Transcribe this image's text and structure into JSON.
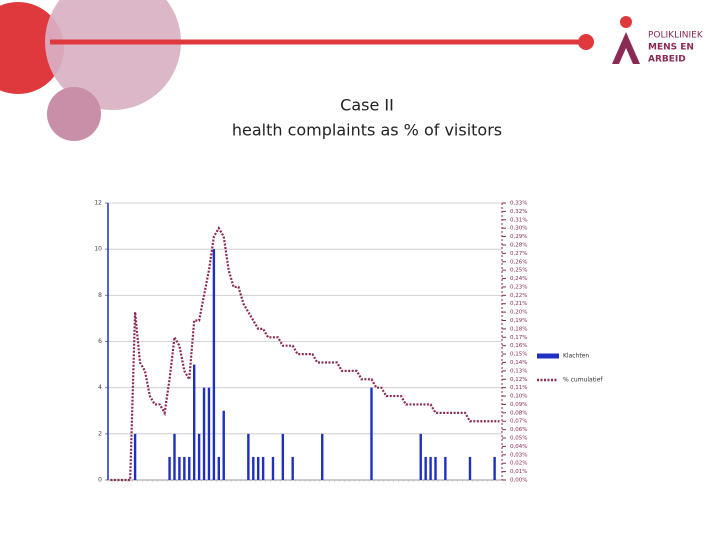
{
  "slide": {
    "title": "Case II",
    "subtitle": "health complaints as % of visitors",
    "logo": [
      "POLIKLINIEK",
      "MENS EN",
      "ARBEID"
    ]
  },
  "chart_data": {
    "type": "combo",
    "categories": [
      null,
      null,
      null,
      null,
      null,
      null,
      null,
      null,
      null,
      null,
      null,
      null,
      null,
      null,
      null,
      null,
      null,
      null,
      null,
      null,
      null,
      null,
      null,
      null,
      null,
      null,
      null,
      null,
      null,
      null,
      null,
      null,
      null,
      null,
      null,
      null,
      null,
      null,
      null,
      null,
      null,
      null,
      null,
      null,
      null,
      null,
      null,
      null,
      null,
      null,
      null,
      null,
      null,
      null,
      null,
      null,
      null,
      null,
      null,
      null,
      null,
      null,
      null,
      null,
      null,
      null,
      null,
      null,
      null,
      null,
      null,
      null,
      null,
      null,
      null,
      null,
      null,
      null,
      null,
      null
    ],
    "series": [
      {
        "name": "Klachten",
        "type": "bar",
        "color": "#1f2fc0",
        "values": [
          0,
          0,
          0,
          0,
          0,
          2,
          0,
          0,
          0,
          0,
          0,
          0,
          1,
          2,
          1,
          1,
          1,
          5,
          2,
          4,
          4,
          10,
          1,
          3,
          0,
          0,
          0,
          0,
          2,
          1,
          1,
          1,
          0,
          1,
          0,
          2,
          0,
          1,
          0,
          0,
          0,
          0,
          0,
          2,
          0,
          0,
          0,
          0,
          0,
          0,
          0,
          0,
          0,
          4,
          0,
          0,
          0,
          0,
          0,
          0,
          0,
          0,
          0,
          2,
          1,
          1,
          1,
          0,
          1,
          0,
          0,
          0,
          0,
          1,
          0,
          0,
          0,
          0,
          1,
          0
        ]
      },
      {
        "name": "% cumulatief",
        "type": "line",
        "axis": "y2",
        "color": "#8b2a55",
        "linestyle": "dotted",
        "values": [
          0,
          0,
          0,
          0,
          0,
          0.2,
          0.14,
          0.13,
          0.1,
          0.09,
          0.09,
          0.08,
          0.12,
          0.17,
          0.16,
          0.13,
          0.12,
          0.19,
          0.19,
          0.22,
          0.25,
          0.29,
          0.3,
          0.29,
          0.25,
          0.23,
          0.23,
          0.21,
          0.2,
          0.19,
          0.18,
          0.18,
          0.17,
          0.17,
          0.17,
          0.16,
          0.16,
          0.16,
          0.15,
          0.15,
          0.15,
          0.15,
          0.14,
          0.14,
          0.14,
          0.14,
          0.14,
          0.13,
          0.13,
          0.13,
          0.13,
          0.12,
          0.12,
          0.12,
          0.11,
          0.11,
          0.1,
          0.1,
          0.1,
          0.1,
          0.09,
          0.09,
          0.09,
          0.09,
          0.09,
          0.09,
          0.08,
          0.08,
          0.08,
          0.08,
          0.08,
          0.08,
          0.08,
          0.07,
          0.07,
          0.07,
          0.07,
          0.07,
          0.07,
          0.07
        ]
      }
    ],
    "ylim": [
      0,
      12
    ],
    "yticks": [
      0,
      2,
      4,
      6,
      8,
      10,
      12
    ],
    "y2lim": [
      0,
      0.33
    ],
    "y2ticks": [
      {
        "value": 0,
        "label": "0,00%"
      },
      {
        "value": 0.01,
        "label": "0,01%"
      },
      {
        "value": 0.02,
        "label": "0,02%"
      },
      {
        "value": 0.03,
        "label": "0,03%"
      },
      {
        "value": 0.04,
        "label": "0,04%"
      },
      {
        "value": 0.05,
        "label": "0,05%"
      },
      {
        "value": 0.06,
        "label": "0,06%"
      },
      {
        "value": 0.07,
        "label": "0,07%"
      },
      {
        "value": 0.08,
        "label": "0,08%"
      },
      {
        "value": 0.09,
        "label": "0,09%"
      },
      {
        "value": 0.1,
        "label": "0,10%"
      },
      {
        "value": 0.11,
        "label": "0,11%"
      },
      {
        "value": 0.12,
        "label": "0,12%"
      },
      {
        "value": 0.13,
        "label": "0,13%"
      },
      {
        "value": 0.14,
        "label": "0,14%"
      },
      {
        "value": 0.15,
        "label": "0,15%"
      },
      {
        "value": 0.16,
        "label": "0,16%"
      },
      {
        "value": 0.17,
        "label": "0,17%"
      },
      {
        "value": 0.18,
        "label": "0,18%"
      },
      {
        "value": 0.19,
        "label": "0,19%"
      },
      {
        "value": 0.2,
        "label": "0,20%"
      },
      {
        "value": 0.21,
        "label": "0,21%"
      },
      {
        "value": 0.22,
        "label": "0,22%"
      },
      {
        "value": 0.23,
        "label": "0,23%"
      },
      {
        "value": 0.24,
        "label": "0,24%"
      },
      {
        "value": 0.25,
        "label": "0,25%"
      },
      {
        "value": 0.26,
        "label": "0,26%"
      },
      {
        "value": 0.27,
        "label": "0,27%"
      },
      {
        "value": 0.28,
        "label": "0,28%"
      },
      {
        "value": 0.29,
        "label": "0,29%"
      },
      {
        "value": 0.3,
        "label": "0,30%"
      },
      {
        "value": 0.31,
        "label": "0,31%"
      },
      {
        "value": 0.32,
        "label": "0,32%"
      },
      {
        "value": 0.33,
        "label": "0,33%"
      }
    ],
    "grid": true
  }
}
